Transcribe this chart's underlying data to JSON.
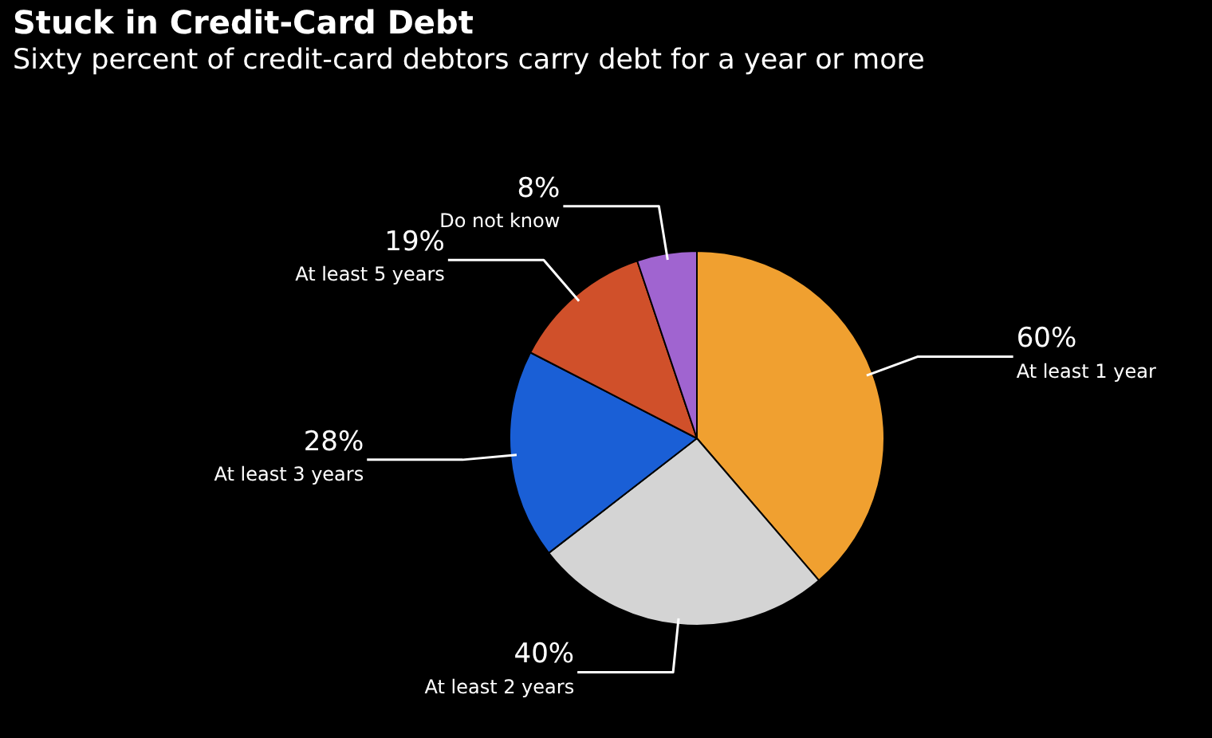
{
  "chart_data": {
    "type": "pie",
    "title": "Stuck in Credit-Card Debt",
    "subtitle": "Sixty percent of credit-card debtors carry debt for a year or more",
    "categories": [
      "At least 1 year",
      "At least 2 years",
      "At least 3 years",
      "At least 5 years",
      "Do not know"
    ],
    "values": [
      60,
      40,
      28,
      19,
      8
    ],
    "value_labels": [
      "60%",
      "40%",
      "28%",
      "19%",
      "8%"
    ],
    "colors": [
      "#f0a030",
      "#d4d4d4",
      "#1a5fd6",
      "#d0502a",
      "#a064d0"
    ],
    "legend": false
  }
}
